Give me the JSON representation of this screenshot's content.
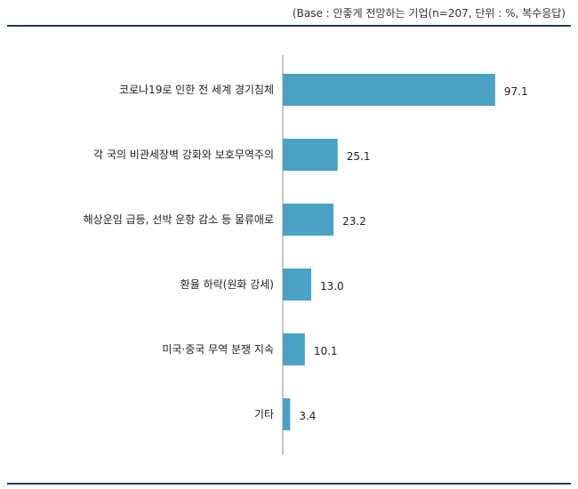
{
  "note": "(Base : 안좋게 전망하는 기업(n=207, 단위 : %, 복수응답)",
  "colors": {
    "bar": "#4aa3c5",
    "rule": "#1f3864",
    "axis": "#8c8c8c"
  },
  "chart_data": {
    "type": "bar",
    "orientation": "horizontal",
    "categories": [
      "코로나19로 인한 전 세계 경기침체",
      "각 국의 비관세장벽 강화와 보호무역주의",
      "해상운임 급등, 선박 운항 감소 등 물류애로",
      "환율 하락(원화 강세)",
      "미국·중국 무역 분쟁 지속",
      "기타"
    ],
    "values": [
      97.1,
      25.1,
      23.2,
      13.0,
      10.1,
      3.4
    ],
    "value_labels": [
      "97.1",
      "25.1",
      "23.2",
      "13.0",
      "10.1",
      "3.4"
    ],
    "xlim": [
      0,
      100
    ],
    "grid": false,
    "legend": "none"
  }
}
